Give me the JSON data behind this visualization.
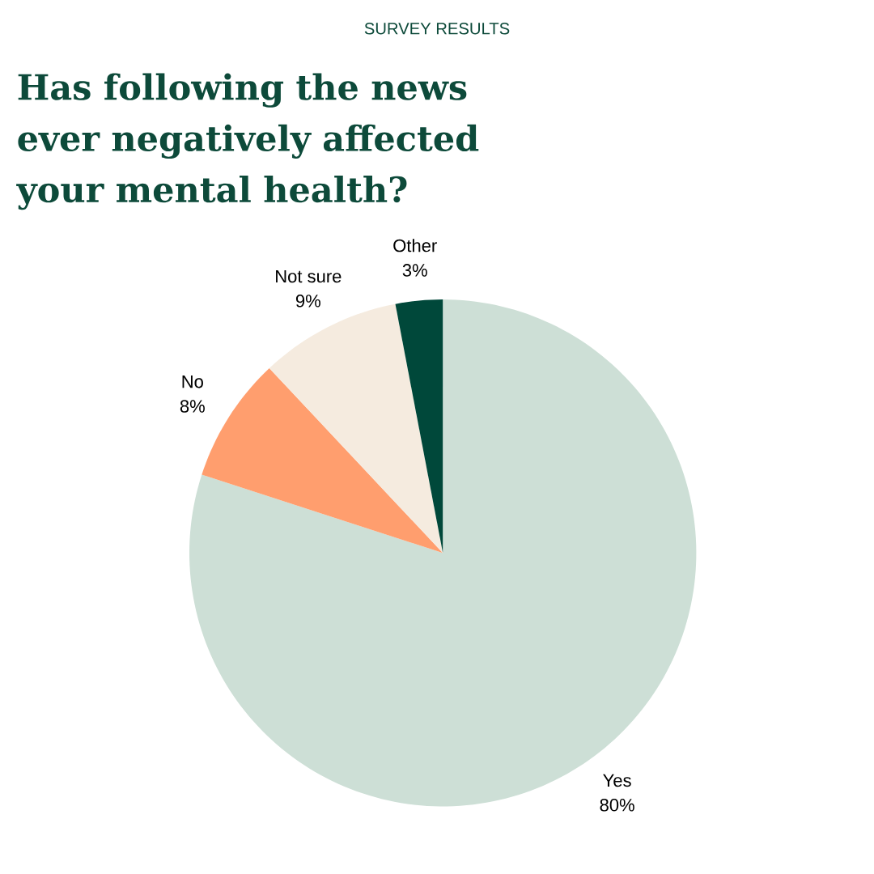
{
  "chart_data": {
    "type": "pie",
    "title": "Has following the news ever negatively affected your mental health?",
    "subtitle": "SURVEY RESULTS",
    "categories": [
      "Yes",
      "No",
      "Not sure",
      "Other"
    ],
    "values": [
      80,
      8,
      9,
      3
    ],
    "value_labels": [
      "80%",
      "8%",
      "9%",
      "3%"
    ],
    "colors": [
      "#cddfd6",
      "#ff9e6e",
      "#f5ebdf",
      "#00483a"
    ]
  }
}
